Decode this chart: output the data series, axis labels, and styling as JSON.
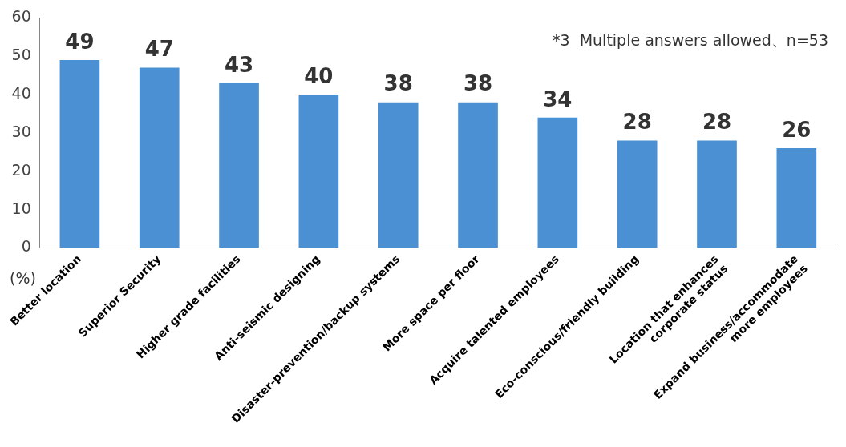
{
  "chart_data": {
    "type": "bar",
    "ylabel": "(%)",
    "annotations": [
      "*3  Multiple answers allowed、n=53"
    ],
    "categories": [
      "Better location",
      "Superior Security",
      "Higher grade facilities",
      "Anti-seismic designing",
      "Disaster-prevention/backup systems",
      "More space per floor",
      "Acquire talented employees",
      "Eco-conscious/friendly building",
      "Location that enhances\ncorporate status",
      "Expand business/accommodate\nmore employees"
    ],
    "values": [
      49,
      47,
      43,
      40,
      38,
      38,
      34,
      28,
      28,
      26
    ],
    "color": "#4a90d2",
    "ylim": [
      0,
      60
    ],
    "yticks": [
      0,
      10,
      20,
      30,
      40,
      50,
      60
    ],
    "grid": false,
    "legend": false,
    "data_labels": true
  }
}
